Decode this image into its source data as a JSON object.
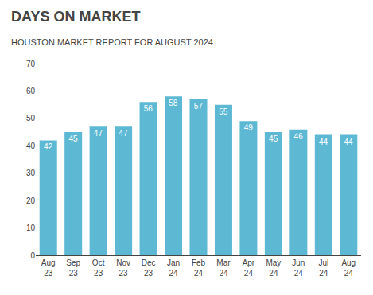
{
  "chart_data": {
    "type": "bar",
    "title": "DAYS ON MARKET",
    "subtitle": "HOUSTON MARKET REPORT FOR AUGUST 2024",
    "categories": [
      "Aug\n23",
      "Sep\n23",
      "Oct\n23",
      "Nov\n23",
      "Dec\n23",
      "Jan\n24",
      "Feb\n24",
      "Mar\n24",
      "Apr\n24",
      "May\n24",
      "Jun\n24",
      "Jul\n24",
      "Aug\n24"
    ],
    "values": [
      42,
      45,
      47,
      47,
      56,
      58,
      57,
      55,
      49,
      45,
      46,
      44,
      44
    ],
    "color": "#5DB8D4",
    "ylim": [
      0,
      70
    ],
    "yticks": [
      0,
      10,
      20,
      30,
      40,
      50,
      60,
      70
    ],
    "grid": false,
    "data_labels": true
  }
}
